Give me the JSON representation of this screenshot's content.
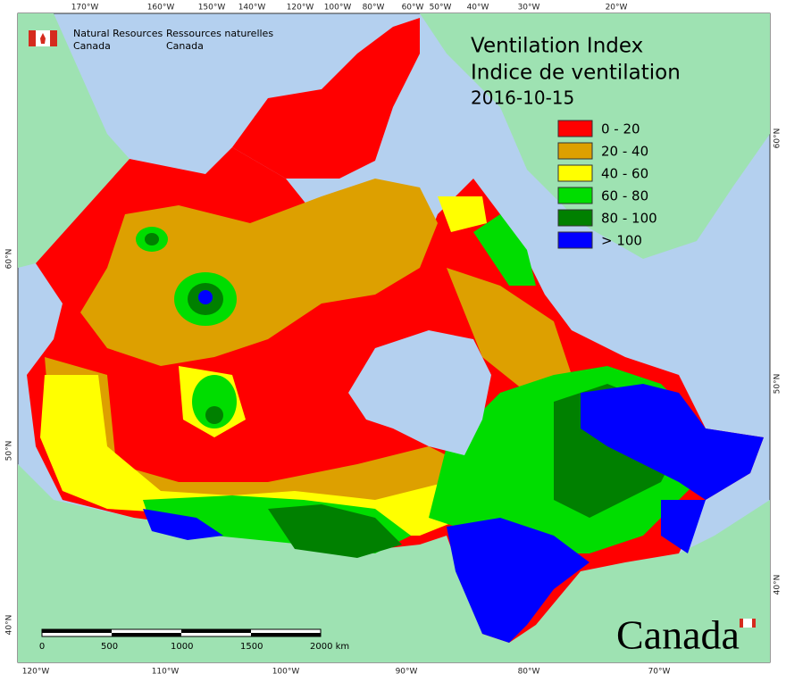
{
  "header": {
    "en_line1": "Natural Resources",
    "en_line2": "Canada",
    "fr_line1": "Ressources naturelles",
    "fr_line2": "Canada"
  },
  "title": {
    "line1": "Ventilation Index",
    "line2": "Indice de ventilation",
    "date": "2016-10-15"
  },
  "legend": {
    "items": [
      {
        "label": "0 - 20",
        "color": "#ff0000"
      },
      {
        "label": "20 - 40",
        "color": "#dda000"
      },
      {
        "label": "40 - 60",
        "color": "#ffff00"
      },
      {
        "label": "60 - 80",
        "color": "#00dd00"
      },
      {
        "label": "80 - 100",
        "color": "#008000"
      },
      {
        "label": "> 100",
        "color": "#0000ff"
      }
    ]
  },
  "graticule": {
    "top": [
      "170°W",
      "160°W",
      "150°W",
      "140°W",
      "120°W",
      "100°W",
      "80°W",
      "60°W",
      "50°W",
      "40°W",
      "30°W",
      "20°W"
    ],
    "bottom": [
      "120°W",
      "110°W",
      "100°W",
      "90°W",
      "80°W",
      "70°W"
    ],
    "left": [
      "60°N",
      "50°N",
      "40°N"
    ],
    "right": [
      "60°N",
      "50°N",
      "40°N"
    ]
  },
  "scale_bar": {
    "labels": [
      "0",
      "500",
      "1000",
      "1500",
      "2000  km"
    ]
  },
  "wordmark": "Canada"
}
